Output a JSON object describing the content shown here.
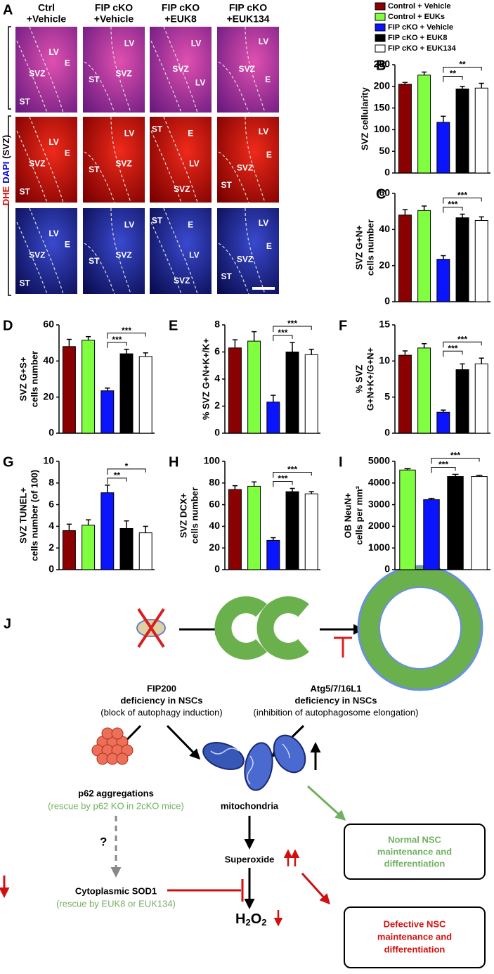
{
  "legend": [
    {
      "name": "Control + Vehicle",
      "color": "#8b0000"
    },
    {
      "name": "Control + EUKs",
      "color": "#80ff40"
    },
    {
      "name": "FIP cKO + Vehicle",
      "color": "#0a14ff"
    },
    {
      "name": "FIP cKO + EUK8",
      "color": "#000000"
    },
    {
      "name": "FIP cKO + EUK134",
      "color": "#ffffff"
    }
  ],
  "micrographs": {
    "label": "A",
    "columns": [
      [
        "Ctrl",
        "+Vehicle"
      ],
      [
        "FIP cKO",
        "+Vehicle"
      ],
      [
        "FIP cKO",
        "+EUK8"
      ],
      [
        "FIP cKO",
        "+EUK134"
      ]
    ],
    "row_label": [
      {
        "text": "DHE",
        "color": "#e00000"
      },
      {
        "text": "DAPI",
        "color": "#0000e0"
      },
      {
        "text": "(SVZ)",
        "color": "#000000"
      }
    ],
    "images": [
      [
        [
          "LV",
          "E",
          "SVZ",
          "ST"
        ],
        [
          "LV",
          "ST",
          "SVZ"
        ],
        [
          "LV",
          "SVZ",
          "LV"
        ],
        [
          "LV",
          "SVZ",
          "E"
        ]
      ],
      [
        [
          "LV",
          "E",
          "SVZ",
          "ST"
        ],
        [
          "LV",
          "ST",
          "SVZ"
        ],
        [
          "ST",
          "E",
          "LV",
          "SVZ"
        ],
        [
          "LV",
          "E",
          "SVZ",
          "ST"
        ]
      ],
      [
        [
          "LV",
          "E",
          "SVZ",
          "ST"
        ],
        [
          "LV",
          "ST",
          "SVZ"
        ],
        [
          "ST",
          "E",
          "LV",
          "SVZ"
        ],
        [
          "LV",
          "E",
          "SVZ",
          "ST"
        ]
      ]
    ]
  },
  "chart_data": [
    {
      "type": "bar",
      "label": "B",
      "ylabel": [
        "SVZ cellularity"
      ],
      "values": [
        205,
        226,
        117,
        194,
        196
      ],
      "errors": [
        4,
        7,
        14,
        6,
        11
      ],
      "colors": [
        "#8b0000",
        "#80ff40",
        "#0a14ff",
        "#000000",
        "#ffffff"
      ],
      "ylim": [
        0,
        250
      ],
      "yticks": [
        0,
        50,
        100,
        150,
        200,
        250
      ],
      "significance": [
        {
          "bars": [
            2,
            3
          ],
          "label": "**"
        },
        {
          "bars": [
            2,
            4
          ],
          "label": "**"
        }
      ]
    },
    {
      "type": "bar",
      "label": "C",
      "ylabel": [
        "SVZ G+N+",
        "cells number"
      ],
      "values": [
        48,
        50.5,
        23.5,
        46.5,
        45
      ],
      "errors": [
        3,
        2.5,
        2,
        2,
        2
      ],
      "colors": [
        "#8b0000",
        "#80ff40",
        "#0a14ff",
        "#000000",
        "#ffffff"
      ],
      "ylim": [
        0,
        60
      ],
      "yticks": [
        0,
        20,
        40,
        60
      ],
      "significance": [
        {
          "bars": [
            2,
            3
          ],
          "label": "***"
        },
        {
          "bars": [
            2,
            4
          ],
          "label": "***"
        }
      ]
    },
    {
      "type": "bar",
      "label": "D",
      "ylabel": [
        "SVZ G+S+",
        "cells number"
      ],
      "values": [
        48,
        51.5,
        23.5,
        44,
        42.5
      ],
      "errors": [
        4,
        2,
        1.5,
        2.5,
        2
      ],
      "colors": [
        "#8b0000",
        "#80ff40",
        "#0a14ff",
        "#000000",
        "#ffffff"
      ],
      "ylim": [
        0,
        60
      ],
      "yticks": [
        0,
        20,
        40,
        60
      ],
      "significance": [
        {
          "bars": [
            2,
            3
          ],
          "label": "***"
        },
        {
          "bars": [
            2,
            4
          ],
          "label": "***"
        }
      ]
    },
    {
      "type": "bar",
      "label": "E",
      "ylabel": [
        "% SVZ G+N+K+/K+"
      ],
      "values": [
        6.3,
        6.8,
        2.3,
        6.0,
        5.8
      ],
      "errors": [
        0.6,
        0.7,
        0.5,
        0.7,
        0.4
      ],
      "colors": [
        "#8b0000",
        "#80ff40",
        "#0a14ff",
        "#000000",
        "#ffffff"
      ],
      "ylim": [
        0,
        8
      ],
      "yticks": [
        0,
        2,
        4,
        6,
        8
      ],
      "significance": [
        {
          "bars": [
            2,
            3
          ],
          "label": "***"
        },
        {
          "bars": [
            2,
            4
          ],
          "label": "***"
        }
      ]
    },
    {
      "type": "bar",
      "label": "F",
      "ylabel": [
        "% SVZ",
        "G+N+K+/G+N+"
      ],
      "values": [
        10.8,
        11.8,
        2.9,
        8.8,
        9.6
      ],
      "errors": [
        0.6,
        0.6,
        0.3,
        0.8,
        0.8
      ],
      "colors": [
        "#8b0000",
        "#80ff40",
        "#0a14ff",
        "#000000",
        "#ffffff"
      ],
      "ylim": [
        0,
        15
      ],
      "yticks": [
        0,
        5,
        10,
        15
      ],
      "significance": [
        {
          "bars": [
            2,
            3
          ],
          "label": "***"
        },
        {
          "bars": [
            2,
            4
          ],
          "label": "***"
        }
      ]
    },
    {
      "type": "bar",
      "label": "G",
      "ylabel": [
        "SVZ TUNEL+",
        "cells number (of 100)"
      ],
      "values": [
        3.6,
        4.1,
        7.1,
        3.8,
        3.4
      ],
      "errors": [
        0.6,
        0.5,
        0.7,
        0.7,
        0.6
      ],
      "colors": [
        "#8b0000",
        "#80ff40",
        "#0a14ff",
        "#000000",
        "#ffffff"
      ],
      "ylim": [
        0,
        10
      ],
      "yticks": [
        0,
        2,
        4,
        6,
        8,
        10
      ],
      "significance": [
        {
          "bars": [
            2,
            3
          ],
          "label": "**"
        },
        {
          "bars": [
            2,
            4
          ],
          "label": "*"
        }
      ]
    },
    {
      "type": "bar",
      "label": "H",
      "ylabel": [
        "SVZ DCX+",
        "cells number"
      ],
      "values": [
        74,
        77,
        27,
        72,
        70
      ],
      "errors": [
        3.5,
        4,
        2.5,
        3,
        2
      ],
      "colors": [
        "#8b0000",
        "#80ff40",
        "#0a14ff",
        "#000000",
        "#ffffff"
      ],
      "ylim": [
        0,
        100
      ],
      "yticks": [
        0,
        20,
        40,
        60,
        80,
        100
      ],
      "significance": [
        {
          "bars": [
            2,
            3
          ],
          "label": "***"
        },
        {
          "bars": [
            2,
            4
          ],
          "label": "***"
        }
      ]
    },
    {
      "type": "bar",
      "label": "I",
      "ylabel": [
        "OB NeuN+",
        "cells per mm²"
      ],
      "values": [
        4600,
        3230,
        4300,
        4300
      ],
      "errors": [
        60,
        60,
        100,
        50
      ],
      "colors": [
        "#80ff40",
        "#0a14ff",
        "#000000",
        "#ffffff"
      ],
      "ylim": [
        0,
        5000
      ],
      "yticks": [
        0,
        1000,
        2000,
        3000,
        4000,
        5000
      ],
      "significance": [
        {
          "bars": [
            1,
            2
          ],
          "label": "***"
        },
        {
          "bars": [
            1,
            3
          ],
          "label": "***"
        }
      ]
    }
  ],
  "diagram": {
    "label": "J",
    "fip200": [
      "FIP200",
      "deficiency in NSCs",
      "(block of autophagy induction)"
    ],
    "atg": [
      "Atg5/7/16L1",
      "deficiency in NSCs",
      "(inhibition of autophagosome elongation)"
    ],
    "p62": [
      "p62 aggregations",
      "(rescue by p62 KO in 2cKO mice)"
    ],
    "mitochondria": "mitochondria",
    "question": "?",
    "sod1": [
      "Cytoplasmic SOD1",
      "(rescue by EUK8 or EUK134)"
    ],
    "superoxide": "Superoxide",
    "h2o2": [
      "H",
      "2",
      "O",
      "2"
    ],
    "normal": [
      "Normal NSC",
      "maintenance and",
      "differentiation"
    ],
    "defective": [
      "Defective NSC",
      "maintenance and",
      "differentiation"
    ]
  }
}
